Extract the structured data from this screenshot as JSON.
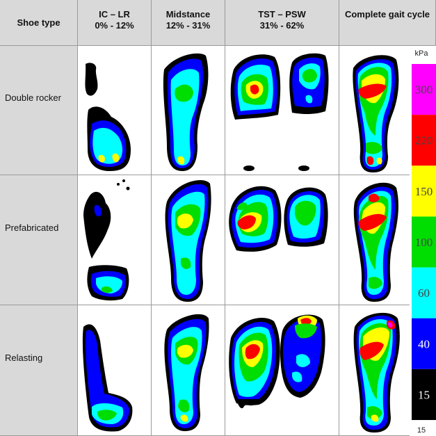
{
  "headers": {
    "shoe_type": "Shoe type",
    "col1_line1": "IC – LR",
    "col1_line2": "0% - 12%",
    "col2_line1": "Midstance",
    "col2_line2": "12% - 31%",
    "col3_line1": "TST – PSW",
    "col3_line2": "31% - 62%",
    "col4_line1": "Complete gait cycle"
  },
  "rows": [
    {
      "label": "Double rocker"
    },
    {
      "label": "Prefabricated"
    },
    {
      "label": "Relasting"
    }
  ],
  "color_scale": {
    "unit": "kPa",
    "bands": [
      {
        "label": "300",
        "color": "#ff00ff"
      },
      {
        "label": "220",
        "color": "#ff0000"
      },
      {
        "label": "150",
        "color": "#ffff00"
      },
      {
        "label": "100",
        "color": "#00dd00"
      },
      {
        "label": "60",
        "color": "#00ffff"
      },
      {
        "label": "40",
        "color": "#0000ff"
      },
      {
        "label": "15",
        "color": "#000000"
      }
    ],
    "bottom_label": "15"
  }
}
